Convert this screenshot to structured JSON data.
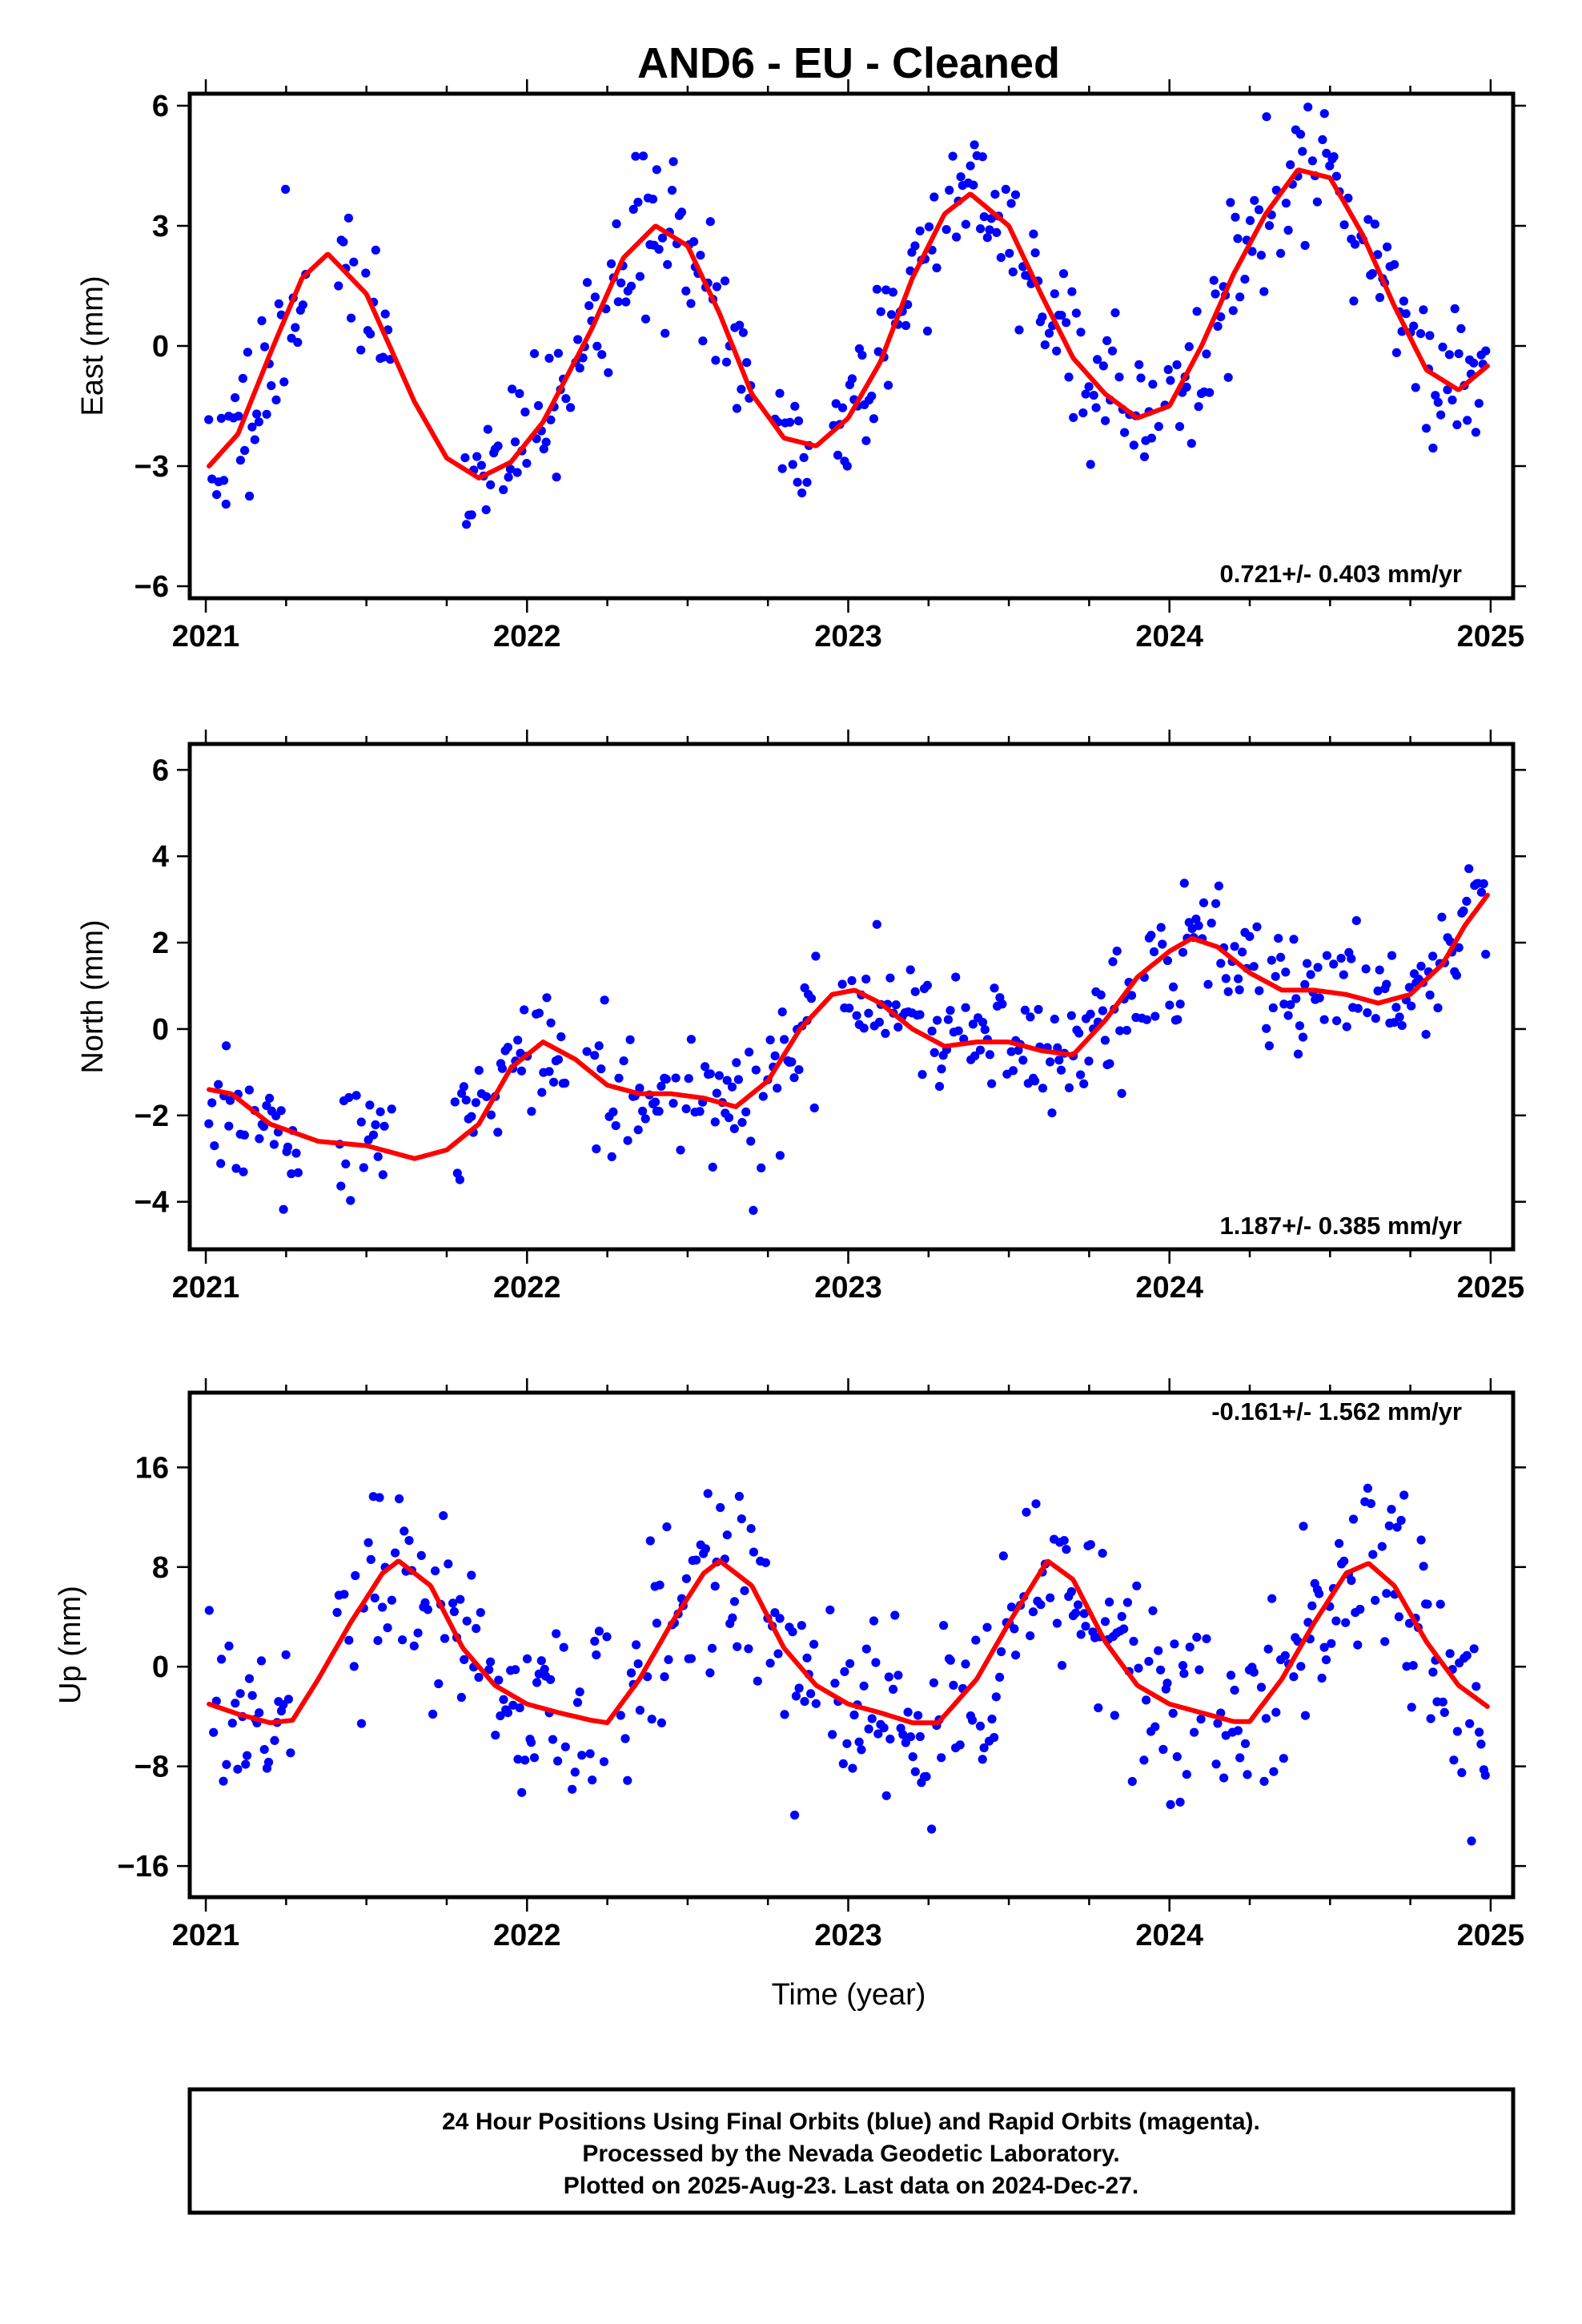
{
  "title": "AND6  - EU - Cleaned",
  "xlabel": "Time (year)",
  "colors": {
    "final_orbits": "#0000ff",
    "rapid_orbits": "#ff00ff",
    "model": "#ff0000",
    "frame": "#000000"
  },
  "footer": {
    "line1": "24 Hour Positions Using Final Orbits (blue) and Rapid Orbits (magenta).",
    "line2": "Processed by the Nevada Geodetic Laboratory.",
    "line3": "Plotted on 2025-Aug-23. Last data on 2024-Dec-27."
  },
  "chart_data": [
    {
      "type": "scatter",
      "id": "east",
      "ylabel": "East (mm)",
      "rate": "0.721+/- 0.403 mm/yr",
      "xlim": [
        2020.95,
        2025.07
      ],
      "ylim": [
        -6.3,
        6.3
      ],
      "x_ticks": [
        "2021",
        "2022",
        "2023",
        "2024",
        "2025"
      ],
      "y_ticks": [
        6,
        3,
        0,
        -3,
        -6
      ],
      "y_tick_labels": [
        "6",
        "3",
        "0",
        "−3",
        "−6"
      ],
      "series": [
        {
          "role": "observations",
          "color": "#0000ff",
          "seed": 11,
          "start": 2021.01,
          "end": 2024.99,
          "step": 0.0075,
          "noise": 0.9,
          "gaps": [
            [
              2021.31,
              2021.41
            ],
            [
              2021.58,
              2021.8
            ],
            [
              2022.7,
              2022.77
            ],
            [
              2022.88,
              2022.95
            ]
          ]
        },
        {
          "role": "model",
          "color": "#ff0000",
          "x": [
            2021.01,
            2021.1,
            2021.2,
            2021.3,
            2021.38,
            2021.5,
            2021.65,
            2021.75,
            2021.85,
            2021.95,
            2022.05,
            2022.2,
            2022.3,
            2022.4,
            2022.5,
            2022.6,
            2022.7,
            2022.8,
            2022.9,
            2023.0,
            2023.1,
            2023.2,
            2023.3,
            2023.38,
            2023.5,
            2023.6,
            2023.7,
            2023.8,
            2023.9,
            2024.0,
            2024.1,
            2024.2,
            2024.3,
            2024.4,
            2024.5,
            2024.6,
            2024.7,
            2024.8,
            2024.9,
            2024.99
          ],
          "y": [
            -3.0,
            -2.2,
            -0.2,
            1.7,
            2.3,
            1.3,
            -1.4,
            -2.8,
            -3.3,
            -2.9,
            -1.9,
            0.4,
            2.2,
            3.0,
            2.5,
            0.8,
            -1.2,
            -2.3,
            -2.5,
            -1.8,
            -0.4,
            1.7,
            3.3,
            3.8,
            3.0,
            1.3,
            -0.3,
            -1.2,
            -1.8,
            -1.5,
            0.0,
            1.8,
            3.3,
            4.4,
            4.2,
            2.8,
            1.0,
            -0.6,
            -1.1,
            -0.5
          ]
        }
      ]
    },
    {
      "type": "scatter",
      "id": "north",
      "ylabel": "North (mm)",
      "rate": "1.187+/- 0.385 mm/yr",
      "xlim": [
        2020.95,
        2025.07
      ],
      "ylim": [
        -5.1,
        6.6
      ],
      "x_ticks": [
        "2021",
        "2022",
        "2023",
        "2024",
        "2025"
      ],
      "y_ticks": [
        6,
        4,
        2,
        0,
        -2,
        -4
      ],
      "y_tick_labels": [
        "6",
        "4",
        "2",
        "0",
        "−2",
        "−4"
      ],
      "series": [
        {
          "role": "observations",
          "color": "#0000ff",
          "seed": 23,
          "start": 2021.01,
          "end": 2024.99,
          "step": 0.0075,
          "noise": 0.75,
          "gaps": [
            [
              2021.29,
              2021.41
            ],
            [
              2021.58,
              2021.77
            ],
            [
              2022.12,
              2022.17
            ],
            [
              2022.9,
              2022.97
            ]
          ]
        },
        {
          "role": "model",
          "color": "#ff0000",
          "x": [
            2021.01,
            2021.08,
            2021.2,
            2021.35,
            2021.5,
            2021.65,
            2021.75,
            2021.85,
            2021.95,
            2022.05,
            2022.15,
            2022.25,
            2022.35,
            2022.45,
            2022.55,
            2022.65,
            2022.75,
            2022.85,
            2022.95,
            2023.02,
            2023.1,
            2023.2,
            2023.3,
            2023.4,
            2023.5,
            2023.6,
            2023.7,
            2023.8,
            2023.9,
            2024.0,
            2024.07,
            2024.15,
            2024.25,
            2024.35,
            2024.45,
            2024.55,
            2024.65,
            2024.75,
            2024.85,
            2024.92,
            2024.99
          ],
          "y": [
            -1.4,
            -1.5,
            -2.2,
            -2.6,
            -2.7,
            -3.0,
            -2.8,
            -2.2,
            -0.9,
            -0.3,
            -0.7,
            -1.3,
            -1.5,
            -1.5,
            -1.6,
            -1.8,
            -1.2,
            0.0,
            0.8,
            0.9,
            0.6,
            0.0,
            -0.4,
            -0.3,
            -0.3,
            -0.5,
            -0.6,
            0.2,
            1.2,
            1.8,
            2.1,
            1.9,
            1.3,
            0.9,
            0.9,
            0.8,
            0.6,
            0.8,
            1.5,
            2.4,
            3.1
          ]
        }
      ]
    },
    {
      "type": "scatter",
      "id": "up",
      "ylabel": "Up (mm)",
      "rate": "-0.161+/- 1.562 mm/yr",
      "xlim": [
        2020.95,
        2025.07
      ],
      "ylim": [
        -18.5,
        22.0
      ],
      "x_ticks": [
        "2021",
        "2022",
        "2023",
        "2024",
        "2025"
      ],
      "y_ticks": [
        16,
        8,
        0,
        -8,
        -16
      ],
      "y_tick_labels": [
        "16",
        "8",
        "0",
        "−8",
        "−16"
      ],
      "series": [
        {
          "role": "observations",
          "color": "#0000ff",
          "seed": 37,
          "start": 2021.01,
          "end": 2024.99,
          "step": 0.0075,
          "noise": 4.0,
          "gaps": [
            [
              2021.28,
              2021.4
            ],
            [
              2022.26,
              2022.29
            ],
            [
              2022.9,
              2022.94
            ]
          ]
        },
        {
          "role": "model",
          "color": "#ff0000",
          "x": [
            2021.01,
            2021.1,
            2021.2,
            2021.27,
            2021.35,
            2021.45,
            2021.55,
            2021.6,
            2021.7,
            2021.8,
            2021.9,
            2022.0,
            2022.1,
            2022.2,
            2022.25,
            2022.35,
            2022.45,
            2022.55,
            2022.6,
            2022.7,
            2022.8,
            2022.9,
            2023.0,
            2023.1,
            2023.2,
            2023.28,
            2023.4,
            2023.5,
            2023.62,
            2023.7,
            2023.8,
            2023.9,
            2024.0,
            2024.1,
            2024.2,
            2024.25,
            2024.35,
            2024.45,
            2024.55,
            2024.62,
            2024.7,
            2024.8,
            2024.9,
            2024.99
          ],
          "y": [
            -3.0,
            -3.8,
            -4.5,
            -4.3,
            -1.0,
            3.5,
            7.5,
            8.5,
            6.5,
            1.5,
            -1.5,
            -3.0,
            -3.7,
            -4.3,
            -4.5,
            -1.0,
            3.5,
            7.5,
            8.5,
            6.5,
            1.5,
            -1.5,
            -3.0,
            -3.7,
            -4.5,
            -4.5,
            -1.0,
            3.5,
            8.5,
            7.0,
            2.0,
            -1.5,
            -3.0,
            -3.7,
            -4.4,
            -4.4,
            -1.0,
            3.5,
            7.5,
            8.3,
            6.5,
            2.0,
            -1.5,
            -3.2
          ]
        }
      ]
    }
  ]
}
